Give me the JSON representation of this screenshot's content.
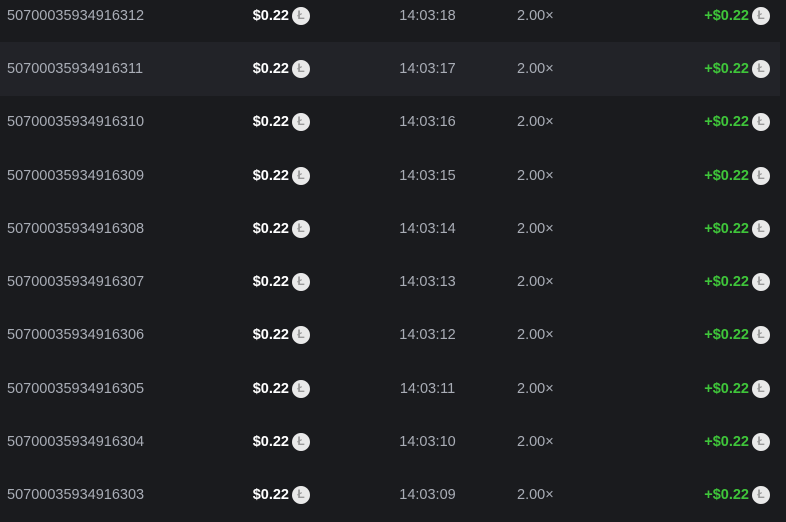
{
  "colors": {
    "background": "#1a1b1e",
    "highlight_row": "#222328",
    "payout": "#3fc53a"
  },
  "coin_icon": "litecoin-icon",
  "highlighted_row": 1,
  "rows": [
    {
      "id": "50700035934916312",
      "amount": "$0.22",
      "time": "14:03:18",
      "multiplier": "2.00×",
      "payout": "+$0.22"
    },
    {
      "id": "50700035934916311",
      "amount": "$0.22",
      "time": "14:03:17",
      "multiplier": "2.00×",
      "payout": "+$0.22"
    },
    {
      "id": "50700035934916310",
      "amount": "$0.22",
      "time": "14:03:16",
      "multiplier": "2.00×",
      "payout": "+$0.22"
    },
    {
      "id": "50700035934916309",
      "amount": "$0.22",
      "time": "14:03:15",
      "multiplier": "2.00×",
      "payout": "+$0.22"
    },
    {
      "id": "50700035934916308",
      "amount": "$0.22",
      "time": "14:03:14",
      "multiplier": "2.00×",
      "payout": "+$0.22"
    },
    {
      "id": "50700035934916307",
      "amount": "$0.22",
      "time": "14:03:13",
      "multiplier": "2.00×",
      "payout": "+$0.22"
    },
    {
      "id": "50700035934916306",
      "amount": "$0.22",
      "time": "14:03:12",
      "multiplier": "2.00×",
      "payout": "+$0.22"
    },
    {
      "id": "50700035934916305",
      "amount": "$0.22",
      "time": "14:03:11",
      "multiplier": "2.00×",
      "payout": "+$0.22"
    },
    {
      "id": "50700035934916304",
      "amount": "$0.22",
      "time": "14:03:10",
      "multiplier": "2.00×",
      "payout": "+$0.22"
    },
    {
      "id": "50700035934916303",
      "amount": "$0.22",
      "time": "14:03:09",
      "multiplier": "2.00×",
      "payout": "+$0.22"
    }
  ]
}
